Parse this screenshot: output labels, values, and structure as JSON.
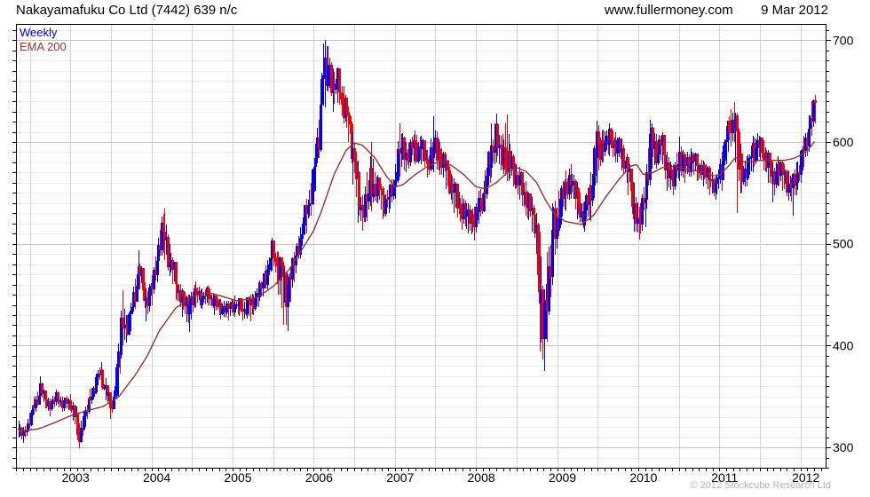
{
  "header": {
    "title": "Nakayamafuku Co Ltd (7442) 639 n/c",
    "website": "www.fullermoney.com",
    "date": "9 Mar 2012"
  },
  "footer": {
    "copyright": "© 2012 Stockcube Research Ltd"
  },
  "chart_data": {
    "type": "candlestick",
    "title": "Nakayamafuku Co Ltd (7442) 639 n/c",
    "interval": "Weekly",
    "overlay": "EMA 200",
    "last_price": 639,
    "legend": [
      {
        "label": "Weekly",
        "color": "#0000cc"
      },
      {
        "label": "EMA 200",
        "color": "#8f3434"
      }
    ],
    "colors": {
      "up_candle": "#0000f0",
      "down_candle": "#f00000",
      "ema_line": "#8f3434",
      "grid_minor": "#ededed",
      "grid_major": "#c3c3c3",
      "grid_vertical": "#d2d2d2",
      "axis": "#000000"
    },
    "x_axis": {
      "year_labels": [
        2003,
        2004,
        2005,
        2006,
        2007,
        2008,
        2009,
        2010,
        2011,
        2012
      ],
      "range": [
        2002.33,
        2012.31
      ],
      "gridline_step_years": 0.5,
      "minor_tick": "monthly"
    },
    "y_axis": {
      "ticks": [
        300,
        400,
        500,
        600,
        700
      ],
      "minor_step": 10,
      "range": [
        280,
        716
      ],
      "side": "right"
    },
    "price_keyframes": [
      [
        2002.36,
        318,
        326,
        310
      ],
      [
        2002.42,
        312,
        320,
        304
      ],
      [
        2002.5,
        328,
        334,
        318
      ],
      [
        2002.56,
        342,
        350,
        332
      ],
      [
        2002.62,
        358,
        370,
        345
      ],
      [
        2002.68,
        348,
        356,
        338
      ],
      [
        2002.75,
        340,
        348,
        331
      ],
      [
        2002.82,
        350,
        357,
        341
      ],
      [
        2002.9,
        343,
        350,
        335
      ],
      [
        2003.0,
        344,
        352,
        336
      ],
      [
        2003.06,
        328,
        340,
        312
      ],
      [
        2003.11,
        312,
        324,
        299
      ],
      [
        2003.18,
        332,
        340,
        320
      ],
      [
        2003.25,
        350,
        358,
        340
      ],
      [
        2003.31,
        363,
        372,
        352
      ],
      [
        2003.37,
        374,
        384,
        362
      ],
      [
        2003.43,
        358,
        368,
        346
      ],
      [
        2003.49,
        340,
        350,
        328
      ],
      [
        2003.54,
        350,
        360,
        340
      ],
      [
        2003.59,
        388,
        402,
        350
      ],
      [
        2003.64,
        426,
        454,
        400
      ],
      [
        2003.69,
        416,
        430,
        403
      ],
      [
        2003.74,
        430,
        442,
        414
      ],
      [
        2003.79,
        452,
        466,
        436
      ],
      [
        2003.84,
        474,
        494,
        455
      ],
      [
        2003.89,
        458,
        472,
        444
      ],
      [
        2003.94,
        444,
        456,
        424
      ],
      [
        2004.0,
        456,
        468,
        440
      ],
      [
        2004.06,
        482,
        498,
        462
      ],
      [
        2004.12,
        512,
        527,
        488
      ],
      [
        2004.16,
        504,
        535,
        484
      ],
      [
        2004.22,
        486,
        500,
        468
      ],
      [
        2004.3,
        462,
        476,
        446
      ],
      [
        2004.38,
        444,
        456,
        428
      ],
      [
        2004.46,
        440,
        450,
        413
      ],
      [
        2004.54,
        452,
        463,
        438
      ],
      [
        2004.62,
        447,
        456,
        436
      ],
      [
        2004.7,
        452,
        459,
        440
      ],
      [
        2004.78,
        442,
        450,
        430
      ],
      [
        2004.86,
        437,
        446,
        426
      ],
      [
        2004.94,
        436,
        444,
        425
      ],
      [
        2005.02,
        441,
        449,
        428
      ],
      [
        2005.12,
        437,
        446,
        425
      ],
      [
        2005.22,
        441,
        450,
        424
      ],
      [
        2005.32,
        452,
        462,
        438
      ],
      [
        2005.42,
        472,
        484,
        455
      ],
      [
        2005.49,
        494,
        506,
        474
      ],
      [
        2005.56,
        478,
        492,
        450
      ],
      [
        2005.61,
        468,
        482,
        420
      ],
      [
        2005.68,
        458,
        470,
        414
      ],
      [
        2005.75,
        482,
        492,
        462
      ],
      [
        2005.83,
        504,
        516,
        486
      ],
      [
        2005.9,
        532,
        544,
        510
      ],
      [
        2005.96,
        548,
        560,
        528
      ],
      [
        2006.02,
        580,
        598,
        552
      ],
      [
        2006.07,
        625,
        648,
        590
      ],
      [
        2006.11,
        672,
        697,
        636
      ],
      [
        2006.145,
        658,
        700,
        634
      ],
      [
        2006.18,
        678,
        694,
        650
      ],
      [
        2006.23,
        652,
        672,
        630
      ],
      [
        2006.29,
        660,
        673,
        638
      ],
      [
        2006.36,
        638,
        655,
        618
      ],
      [
        2006.43,
        620,
        634,
        600
      ],
      [
        2006.49,
        588,
        610,
        558
      ],
      [
        2006.54,
        548,
        582,
        521
      ],
      [
        2006.6,
        532,
        548,
        513
      ],
      [
        2006.66,
        548,
        570,
        522
      ],
      [
        2006.71,
        556,
        600,
        532
      ],
      [
        2006.78,
        558,
        568,
        540
      ],
      [
        2006.85,
        543,
        556,
        524
      ],
      [
        2006.93,
        545,
        556,
        530
      ],
      [
        2007.0,
        562,
        578,
        544
      ],
      [
        2007.06,
        596,
        618,
        566
      ],
      [
        2007.14,
        586,
        600,
        570
      ],
      [
        2007.24,
        596,
        611,
        578
      ],
      [
        2007.33,
        594,
        606,
        578
      ],
      [
        2007.41,
        578,
        592,
        565
      ],
      [
        2007.48,
        594,
        625,
        570
      ],
      [
        2007.56,
        586,
        600,
        568
      ],
      [
        2007.64,
        572,
        586,
        554
      ],
      [
        2007.73,
        548,
        564,
        530
      ],
      [
        2007.82,
        532,
        548,
        514
      ],
      [
        2007.9,
        528,
        540,
        510
      ],
      [
        2007.97,
        522,
        536,
        503
      ],
      [
        2008.04,
        538,
        552,
        520
      ],
      [
        2008.12,
        556,
        572,
        536
      ],
      [
        2008.19,
        596,
        618,
        565
      ],
      [
        2008.24,
        604,
        628,
        580
      ],
      [
        2008.3,
        590,
        606,
        572
      ],
      [
        2008.37,
        582,
        627,
        562
      ],
      [
        2008.45,
        574,
        588,
        556
      ],
      [
        2008.53,
        562,
        576,
        543
      ],
      [
        2008.6,
        548,
        562,
        528
      ],
      [
        2008.68,
        532,
        546,
        512
      ],
      [
        2008.74,
        516,
        530,
        490
      ],
      [
        2008.79,
        442,
        512,
        394
      ],
      [
        2008.83,
        408,
        452,
        375
      ],
      [
        2008.88,
        465,
        492,
        404
      ],
      [
        2008.94,
        502,
        540,
        462
      ],
      [
        2009.02,
        532,
        552,
        508
      ],
      [
        2009.1,
        556,
        572,
        532
      ],
      [
        2009.17,
        564,
        578,
        544
      ],
      [
        2009.25,
        542,
        560,
        524
      ],
      [
        2009.33,
        524,
        542,
        512
      ],
      [
        2009.41,
        556,
        570,
        522
      ],
      [
        2009.49,
        596,
        621,
        560
      ],
      [
        2009.56,
        596,
        612,
        580
      ],
      [
        2009.64,
        604,
        618,
        586
      ],
      [
        2009.72,
        598,
        610,
        580
      ],
      [
        2009.8,
        590,
        602,
        572
      ],
      [
        2009.88,
        570,
        584,
        548
      ],
      [
        2009.95,
        534,
        560,
        512
      ],
      [
        2010.01,
        518,
        536,
        504
      ],
      [
        2010.08,
        548,
        566,
        516
      ],
      [
        2010.15,
        600,
        622,
        560
      ],
      [
        2010.22,
        592,
        608,
        574
      ],
      [
        2010.29,
        598,
        610,
        578
      ],
      [
        2010.36,
        574,
        590,
        552
      ],
      [
        2010.43,
        562,
        578,
        548
      ],
      [
        2010.5,
        588,
        605,
        562
      ],
      [
        2010.57,
        576,
        590,
        560
      ],
      [
        2010.64,
        584,
        594,
        566
      ],
      [
        2010.72,
        578,
        588,
        562
      ],
      [
        2010.8,
        572,
        582,
        556
      ],
      [
        2010.88,
        566,
        576,
        548
      ],
      [
        2010.95,
        554,
        566,
        543
      ],
      [
        2011.02,
        576,
        590,
        552
      ],
      [
        2011.08,
        602,
        616,
        578
      ],
      [
        2011.14,
        618,
        632,
        596
      ],
      [
        2011.18,
        624,
        639,
        600
      ],
      [
        2011.22,
        592,
        628,
        530
      ],
      [
        2011.28,
        566,
        582,
        550
      ],
      [
        2011.34,
        574,
        586,
        556
      ],
      [
        2011.41,
        592,
        606,
        570
      ],
      [
        2011.47,
        600,
        609,
        582
      ],
      [
        2011.54,
        590,
        602,
        572
      ],
      [
        2011.6,
        580,
        592,
        560
      ],
      [
        2011.66,
        564,
        578,
        541
      ],
      [
        2011.72,
        576,
        586,
        556
      ],
      [
        2011.78,
        570,
        582,
        552
      ],
      [
        2011.84,
        560,
        572,
        543
      ],
      [
        2011.9,
        554,
        568,
        528
      ],
      [
        2011.95,
        568,
        580,
        548
      ],
      [
        2012.0,
        582,
        592,
        560
      ],
      [
        2012.05,
        596,
        606,
        576
      ],
      [
        2012.1,
        614,
        626,
        590
      ],
      [
        2012.14,
        628,
        640,
        606
      ],
      [
        2012.175,
        639,
        646,
        618
      ]
    ],
    "ema_keyframes": [
      [
        2002.36,
        316
      ],
      [
        2002.6,
        318
      ],
      [
        2002.8,
        324
      ],
      [
        2003.0,
        331
      ],
      [
        2003.2,
        336
      ],
      [
        2003.4,
        340
      ],
      [
        2003.6,
        350
      ],
      [
        2003.8,
        371
      ],
      [
        2003.95,
        390
      ],
      [
        2004.1,
        415
      ],
      [
        2004.3,
        437
      ],
      [
        2004.5,
        448
      ],
      [
        2004.7,
        452
      ],
      [
        2004.85,
        449
      ],
      [
        2005.05,
        444
      ],
      [
        2005.3,
        447
      ],
      [
        2005.5,
        458
      ],
      [
        2005.7,
        475
      ],
      [
        2005.9,
        500
      ],
      [
        2006.0,
        513
      ],
      [
        2006.1,
        533
      ],
      [
        2006.25,
        568
      ],
      [
        2006.4,
        592
      ],
      [
        2006.5,
        599
      ],
      [
        2006.6,
        597
      ],
      [
        2006.75,
        585
      ],
      [
        2006.9,
        566
      ],
      [
        2007.0,
        556
      ],
      [
        2007.1,
        558
      ],
      [
        2007.25,
        568
      ],
      [
        2007.4,
        576
      ],
      [
        2007.55,
        581
      ],
      [
        2007.7,
        577
      ],
      [
        2007.85,
        568
      ],
      [
        2008.0,
        556
      ],
      [
        2008.12,
        554
      ],
      [
        2008.25,
        560
      ],
      [
        2008.4,
        571
      ],
      [
        2008.5,
        575
      ],
      [
        2008.62,
        571
      ],
      [
        2008.75,
        560
      ],
      [
        2008.85,
        544
      ],
      [
        2008.95,
        531
      ],
      [
        2009.1,
        522
      ],
      [
        2009.3,
        519
      ],
      [
        2009.45,
        528
      ],
      [
        2009.6,
        546
      ],
      [
        2009.75,
        562
      ],
      [
        2009.9,
        576
      ],
      [
        2009.98,
        578
      ],
      [
        2010.06,
        568
      ],
      [
        2010.18,
        570
      ],
      [
        2010.3,
        575
      ],
      [
        2010.45,
        576
      ],
      [
        2010.6,
        573
      ],
      [
        2010.78,
        571
      ],
      [
        2010.92,
        567
      ],
      [
        2011.0,
        567
      ],
      [
        2011.12,
        577
      ],
      [
        2011.2,
        585
      ],
      [
        2011.32,
        580
      ],
      [
        2011.5,
        582
      ],
      [
        2011.65,
        582
      ],
      [
        2011.8,
        582
      ],
      [
        2011.92,
        584
      ],
      [
        2012.0,
        587
      ],
      [
        2012.1,
        593
      ],
      [
        2012.18,
        601
      ]
    ]
  }
}
